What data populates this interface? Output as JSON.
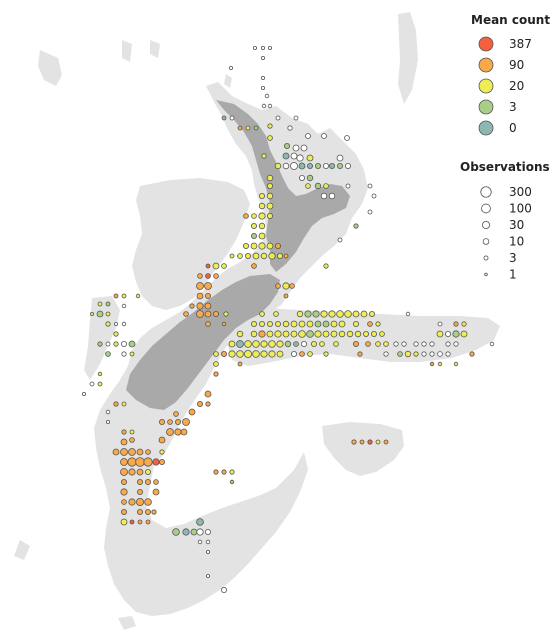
{
  "colors": {
    "shelf": "#e3e3e3",
    "land": "#a9a9a9",
    "stroke": "#555555",
    "count_387": "#f4603e",
    "count_90": "#f9a84a",
    "count_20": "#eded55",
    "count_3": "#a9cf86",
    "count_0": "#8db7b3"
  },
  "legend_count": {
    "title": "Mean count",
    "items": [
      {
        "label": "387",
        "color": "#f4603e"
      },
      {
        "label": "90",
        "color": "#f9a84a"
      },
      {
        "label": "20",
        "color": "#eded55"
      },
      {
        "label": "3",
        "color": "#a9cf86"
      },
      {
        "label": "0",
        "color": "#8db7b3"
      }
    ]
  },
  "legend_obs": {
    "title": "Observations",
    "items": [
      {
        "label": "300",
        "obs": 300
      },
      {
        "label": "100",
        "obs": 100
      },
      {
        "label": "30",
        "obs": 30
      },
      {
        "label": "10",
        "obs": 10
      },
      {
        "label": "3",
        "obs": 3
      },
      {
        "label": "1",
        "obs": 1
      }
    ]
  }
}
